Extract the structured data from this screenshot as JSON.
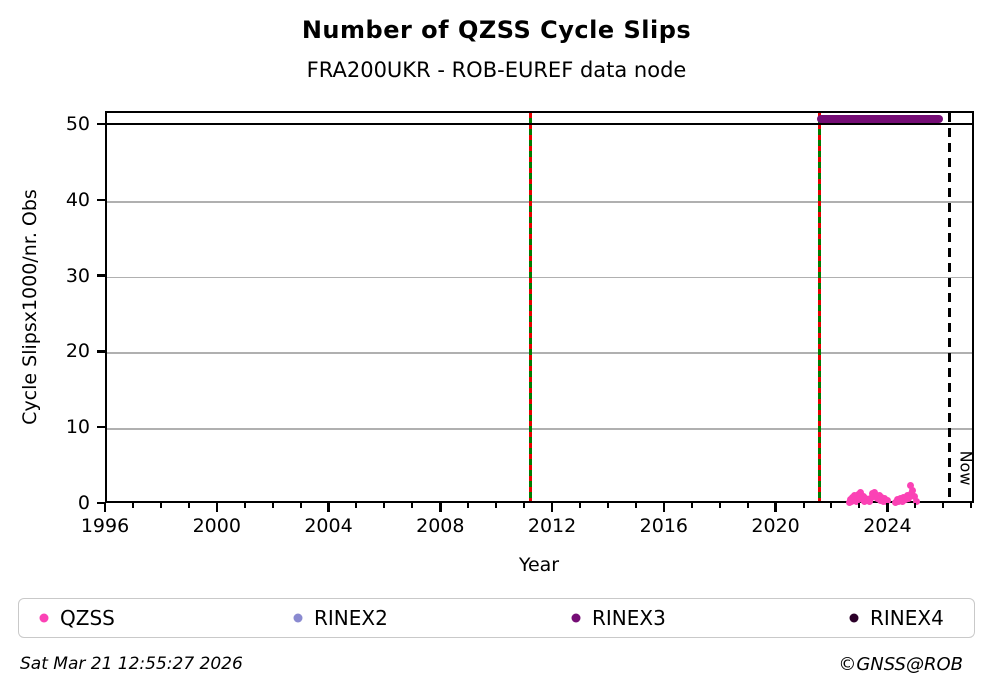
{
  "title": "Number of QZSS Cycle Slips",
  "subtitle": "FRA200UKR - ROB-EUREF data node",
  "footer": {
    "timestamp": "Sat Mar 21 12:55:27 2026",
    "copyright": "©GNSS@ROB"
  },
  "chart_data": {
    "type": "scatter",
    "title": "Number of QZSS Cycle Slips",
    "subtitle": "FRA200UKR - ROB-EUREF data node",
    "xlabel": "Year",
    "ylabel": "Cycle Slipsx1000/nr. Obs",
    "xlim": [
      1996,
      2027.1
    ],
    "ylim": [
      0,
      51.7
    ],
    "x_major_ticks": [
      1996,
      2000,
      2004,
      2008,
      2012,
      2016,
      2020,
      2024
    ],
    "x_minor_tick_step": 1,
    "y_ticks": [
      0,
      10,
      20,
      30,
      40,
      50
    ],
    "grid": {
      "on": true,
      "color": "#b0b0b0",
      "y_values": [
        10,
        20,
        30,
        40
      ]
    },
    "cap_line": {
      "value": 50,
      "color": "#000000"
    },
    "event_lines": [
      {
        "x": 2011.15,
        "solid_color": "#007f00",
        "dash_color": "#e80000"
      },
      {
        "x": 2021.5,
        "solid_color": "#007f00",
        "dash_color": "#e80000"
      }
    ],
    "now_line": {
      "x": 2026.15,
      "label": "Now",
      "color": "#000000",
      "style": "dashed"
    },
    "series": [
      {
        "name": "QZSS",
        "color": "#fb42b5",
        "points": [
          [
            2022.56,
            0.3
          ],
          [
            2022.6,
            0.7
          ],
          [
            2022.64,
            0.4
          ],
          [
            2022.68,
            1.0
          ],
          [
            2022.72,
            0.6
          ],
          [
            2022.76,
            1.2
          ],
          [
            2022.8,
            0.8
          ],
          [
            2022.84,
            0.5
          ],
          [
            2022.88,
            1.4
          ],
          [
            2022.92,
            1.0
          ],
          [
            2022.96,
            1.6
          ],
          [
            2023.0,
            1.2
          ],
          [
            2023.04,
            0.7
          ],
          [
            2023.08,
            1.1
          ],
          [
            2023.12,
            0.5
          ],
          [
            2023.16,
            0.9
          ],
          [
            2023.2,
            0.6
          ],
          [
            2023.28,
            0.4
          ],
          [
            2023.33,
            0.9
          ],
          [
            2023.38,
            1.5
          ],
          [
            2023.43,
            1.1
          ],
          [
            2023.48,
            1.7
          ],
          [
            2023.53,
            1.3
          ],
          [
            2023.58,
            0.8
          ],
          [
            2023.63,
            1.2
          ],
          [
            2023.68,
            0.6
          ],
          [
            2023.73,
            1.0
          ],
          [
            2023.78,
            0.5
          ],
          [
            2023.83,
            0.8
          ],
          [
            2023.88,
            0.4
          ],
          [
            2023.93,
            0.6
          ],
          [
            2024.22,
            0.3
          ],
          [
            2024.28,
            0.7
          ],
          [
            2024.34,
            0.4
          ],
          [
            2024.4,
            0.9
          ],
          [
            2024.46,
            0.5
          ],
          [
            2024.52,
            1.0
          ],
          [
            2024.58,
            0.7
          ],
          [
            2024.64,
            1.2
          ],
          [
            2024.7,
            0.9
          ],
          [
            2024.74,
            2.6
          ],
          [
            2024.78,
            1.5
          ],
          [
            2024.84,
            1.9
          ],
          [
            2024.9,
            1.1
          ],
          [
            2024.96,
            0.5
          ]
        ]
      },
      {
        "name": "RINEX2",
        "color": "#8a8ad0",
        "points": []
      },
      {
        "name": "RINEX3",
        "color": "#750d75",
        "points": [],
        "band": {
          "x_start": 2021.42,
          "x_end": 2025.92,
          "value": 50.9
        }
      },
      {
        "name": "RINEX4",
        "color": "#2b0029",
        "points": []
      }
    ],
    "legend": {
      "entries": [
        "QZSS",
        "RINEX2",
        "RINEX3",
        "RINEX4"
      ],
      "position": "bottom"
    }
  }
}
